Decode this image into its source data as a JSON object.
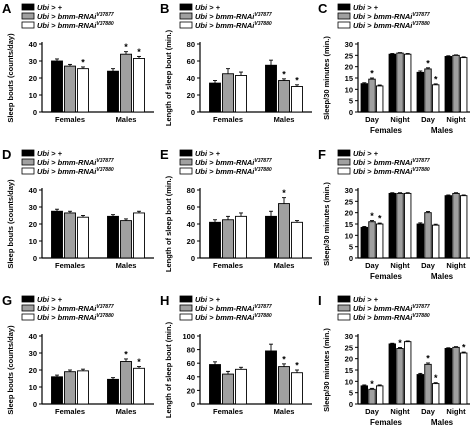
{
  "figure": {
    "legend": [
      {
        "text": "Ubi > +",
        "sup": "",
        "fill": "#000000"
      },
      {
        "text": "Ubi > bmm-RNAi",
        "sup": "V37877",
        "fill": "#a0a0a0"
      },
      {
        "text": "Ubi > bmm-RNAi",
        "sup": "V37880",
        "fill": "#ffffff"
      }
    ],
    "sig_marker": "*"
  },
  "chart_data": [
    {
      "panel": "A",
      "type": "bar",
      "ylabel": "Sleep bouts (counts/day)",
      "ylim": [
        0,
        40
      ],
      "yticks": [
        0,
        10,
        20,
        30,
        40
      ],
      "categories": [
        "Females",
        "Males"
      ],
      "series": [
        {
          "name": "Ubi > + ",
          "values": [
            30,
            24
          ],
          "err": [
            1.2,
            1.5
          ],
          "sig": [
            false,
            false
          ]
        },
        {
          "name": "Ubi > bmm-RNAi V37877",
          "values": [
            27,
            34
          ],
          "err": [
            1,
            1.5
          ],
          "sig": [
            false,
            true
          ]
        },
        {
          "name": "Ubi > bmm-RNAi V37880",
          "values": [
            25.5,
            31.5
          ],
          "err": [
            1,
            1.2
          ],
          "sig": [
            true,
            true
          ]
        }
      ]
    },
    {
      "panel": "B",
      "type": "bar",
      "ylabel": "Length of sleep bout (min.)",
      "ylim": [
        0,
        80
      ],
      "yticks": [
        0,
        20,
        40,
        60,
        80
      ],
      "categories": [
        "Females",
        "Males"
      ],
      "series": [
        {
          "name": "Ubi > +",
          "values": [
            34,
            55
          ],
          "err": [
            3,
            6
          ],
          "sig": [
            false,
            false
          ]
        },
        {
          "name": "Ubi > bmm-RNAi V37877",
          "values": [
            45,
            37
          ],
          "err": [
            6,
            2
          ],
          "sig": [
            false,
            true
          ]
        },
        {
          "name": "Ubi > bmm-RNAi V37880",
          "values": [
            43,
            30
          ],
          "err": [
            4,
            2
          ],
          "sig": [
            false,
            true
          ]
        }
      ]
    },
    {
      "panel": "C",
      "type": "bar",
      "ylabel": "Sleep/30 minutes (min.)",
      "ylim": [
        0,
        30
      ],
      "yticks": [
        0,
        5,
        10,
        15,
        20,
        25,
        30
      ],
      "categories": [
        "Day",
        "Night",
        "Day",
        "Night"
      ],
      "groups": [
        "Females",
        "Males"
      ],
      "series": [
        {
          "name": "Ubi > +",
          "values": [
            12.5,
            25.5,
            17.5,
            24.5
          ],
          "err": [
            0.4,
            0.3,
            0.6,
            0.3
          ],
          "sig": [
            false,
            false,
            false,
            false
          ]
        },
        {
          "name": "Ubi > bmm-RNAi V37877",
          "values": [
            14.5,
            26,
            19,
            25
          ],
          "err": [
            0.5,
            0.2,
            0.5,
            0.2
          ],
          "sig": [
            true,
            false,
            true,
            false
          ]
        },
        {
          "name": "Ubi > bmm-RNAi V37880",
          "values": [
            11.5,
            25.5,
            12,
            24
          ],
          "err": [
            0.4,
            0.3,
            0.4,
            0.3
          ],
          "sig": [
            false,
            false,
            true,
            false
          ]
        }
      ]
    },
    {
      "panel": "D",
      "type": "bar",
      "ylabel": "Sleep bouts (counts/day)",
      "ylim": [
        0,
        40
      ],
      "yticks": [
        0,
        10,
        20,
        30,
        40
      ],
      "categories": [
        "Females",
        "Males"
      ],
      "series": [
        {
          "name": "Ubi > +",
          "values": [
            27.5,
            24.5
          ],
          "err": [
            1.2,
            1
          ],
          "sig": [
            false,
            false
          ]
        },
        {
          "name": "Ubi > bmm-RNAi V37877",
          "values": [
            26.5,
            22
          ],
          "err": [
            1,
            1
          ],
          "sig": [
            false,
            false
          ]
        },
        {
          "name": "Ubi > bmm-RNAi V37880",
          "values": [
            24,
            26.5
          ],
          "err": [
            1,
            1
          ],
          "sig": [
            false,
            false
          ]
        }
      ]
    },
    {
      "panel": "E",
      "type": "bar",
      "ylabel": "Length of sleep bout (min.)",
      "ylim": [
        0,
        80
      ],
      "yticks": [
        0,
        20,
        40,
        60,
        80
      ],
      "categories": [
        "Females",
        "Males"
      ],
      "series": [
        {
          "name": "Ubi > +",
          "values": [
            42,
            49
          ],
          "err": [
            3,
            6
          ],
          "sig": [
            false,
            false
          ]
        },
        {
          "name": "Ubi > bmm-RNAi V37877",
          "values": [
            45,
            64
          ],
          "err": [
            4,
            7
          ],
          "sig": [
            false,
            true
          ]
        },
        {
          "name": "Ubi > bmm-RNAi V37880",
          "values": [
            49,
            42
          ],
          "err": [
            4,
            2
          ],
          "sig": [
            false,
            false
          ]
        }
      ]
    },
    {
      "panel": "F",
      "type": "bar",
      "ylabel": "Sleep/30 minutes (min.)",
      "ylim": [
        0,
        30
      ],
      "yticks": [
        0,
        5,
        10,
        15,
        20,
        25,
        30
      ],
      "categories": [
        "Day",
        "Night",
        "Day",
        "Night"
      ],
      "groups": [
        "Females",
        "Males"
      ],
      "series": [
        {
          "name": "Ubi > +",
          "values": [
            13.5,
            28.5,
            15,
            27.5
          ],
          "err": [
            0.4,
            0.3,
            0.5,
            0.3
          ],
          "sig": [
            false,
            false,
            false,
            false
          ]
        },
        {
          "name": "Ubi > bmm-RNAi V37877",
          "values": [
            16,
            28.5,
            20,
            28.5
          ],
          "err": [
            0.5,
            0.3,
            0.5,
            0.3
          ],
          "sig": [
            true,
            false,
            false,
            false
          ]
        },
        {
          "name": "Ubi > bmm-RNAi V37880",
          "values": [
            15,
            28.5,
            14.5,
            27.5
          ],
          "err": [
            0.4,
            0.3,
            0.4,
            0.3
          ],
          "sig": [
            true,
            false,
            false,
            false
          ]
        }
      ]
    },
    {
      "panel": "G",
      "type": "bar",
      "ylabel": "Sleep bouts (counts/day)",
      "ylim": [
        0,
        40
      ],
      "yticks": [
        0,
        10,
        20,
        30,
        40
      ],
      "categories": [
        "Females",
        "Males"
      ],
      "series": [
        {
          "name": "Ubi > +",
          "values": [
            16,
            14.5
          ],
          "err": [
            1,
            1
          ],
          "sig": [
            false,
            false
          ]
        },
        {
          "name": "Ubi > bmm-RNAi V37877",
          "values": [
            19,
            25
          ],
          "err": [
            1,
            1.5
          ],
          "sig": [
            false,
            true
          ]
        },
        {
          "name": "Ubi > bmm-RNAi V37880",
          "values": [
            19.5,
            21
          ],
          "err": [
            1,
            1
          ],
          "sig": [
            false,
            true
          ]
        }
      ]
    },
    {
      "panel": "H",
      "type": "bar",
      "ylabel": "Length of sleep bout (min.)",
      "ylim": [
        0,
        100
      ],
      "yticks": [
        0,
        20,
        40,
        60,
        80,
        100
      ],
      "categories": [
        "Females",
        "Males"
      ],
      "series": [
        {
          "name": "Ubi > +",
          "values": [
            58,
            78
          ],
          "err": [
            4,
            10
          ],
          "sig": [
            false,
            false
          ]
        },
        {
          "name": "Ubi > bmm-RNAi V37877",
          "values": [
            44,
            55
          ],
          "err": [
            4,
            4
          ],
          "sig": [
            false,
            true
          ]
        },
        {
          "name": "Ubi > bmm-RNAi V37880",
          "values": [
            51,
            46
          ],
          "err": [
            3,
            4
          ],
          "sig": [
            false,
            true
          ]
        }
      ]
    },
    {
      "panel": "I",
      "type": "bar",
      "ylabel": "Sleep/30 minutes (min.)",
      "ylim": [
        0,
        30
      ],
      "yticks": [
        0,
        5,
        10,
        15,
        20,
        25,
        30
      ],
      "categories": [
        "Day",
        "Night",
        "Day",
        "Night"
      ],
      "groups": [
        "Females",
        "Males"
      ],
      "series": [
        {
          "name": "Ubi > +",
          "values": [
            8,
            26.5,
            13,
            24.5
          ],
          "err": [
            0.4,
            0.3,
            0.5,
            0.3
          ],
          "sig": [
            false,
            false,
            false,
            false
          ]
        },
        {
          "name": "Ubi > bmm-RNAi V37877",
          "values": [
            6.5,
            24.5,
            17.5,
            25
          ],
          "err": [
            0.4,
            0.4,
            0.6,
            0.3
          ],
          "sig": [
            true,
            true,
            true,
            false
          ]
        },
        {
          "name": "Ubi > bmm-RNAi V37880",
          "values": [
            8,
            27.5,
            9,
            22.5
          ],
          "err": [
            0.4,
            0.3,
            0.4,
            0.4
          ],
          "sig": [
            false,
            false,
            true,
            true
          ]
        }
      ]
    }
  ]
}
